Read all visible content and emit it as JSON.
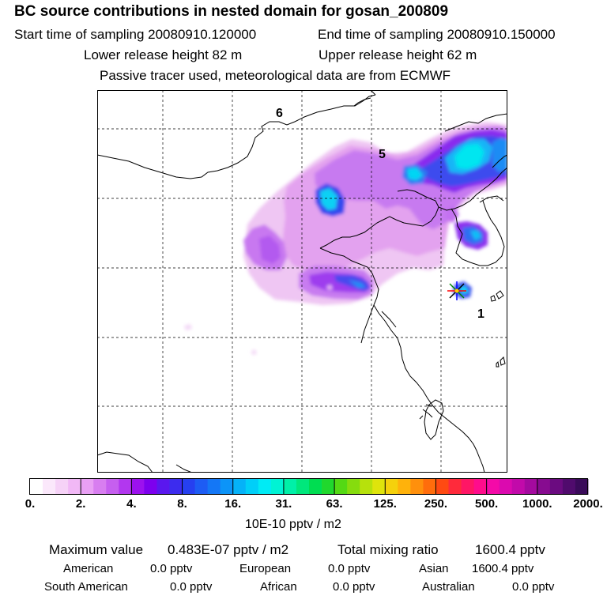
{
  "header": {
    "title": "BC  source contributions in nested domain for gosan_200809",
    "start_time": "Start time of sampling 20080910.120000",
    "end_time": "End time of sampling 20080910.150000",
    "lower_release": "Lower release height   82 m",
    "upper_release": "Upper release height   62 m",
    "note": "Passive tracer used, meteorological data are from ECMWF"
  },
  "map": {
    "region_labels": [
      "6",
      "5",
      "1"
    ],
    "receptor_marker": "star-icon"
  },
  "colorbar": {
    "ticks": [
      "0.",
      "2.",
      "4.",
      "8.",
      "16.",
      "31.",
      "63.",
      "125.",
      "250.",
      "500.",
      "1000.",
      "2000."
    ],
    "colors": [
      "#ffffff",
      "#fbe8fb",
      "#f6d2f7",
      "#f1b8f6",
      "#e9a0f4",
      "#d87ef0",
      "#c65fef",
      "#b237ef",
      "#9c11ee",
      "#7d00ee",
      "#5a17ee",
      "#3c2cee",
      "#2640f0",
      "#1d5cf4",
      "#1477f6",
      "#0c94f8",
      "#05b2f8",
      "#00cff8",
      "#00ebf5",
      "#00f3d4",
      "#00f0a8",
      "#00e77c",
      "#00dd51",
      "#20d82d",
      "#54d914",
      "#86dc0e",
      "#b7e10c",
      "#dfe40c",
      "#f5d10c",
      "#ffb20b",
      "#ff900c",
      "#ff6d0c",
      "#ff4a12",
      "#ff2a3b",
      "#ff1665",
      "#ff0c8c",
      "#f40aa8",
      "#db0aaf",
      "#c20aaa",
      "#a40a9f",
      "#870b90",
      "#6b0b80",
      "#500b6d",
      "#3a0a5a"
    ],
    "units": "10E-10 pptv / m2"
  },
  "summary": {
    "max_label": "Maximum value",
    "max_value": "0.483E-07 pptv / m2",
    "total_label": "Total mixing ratio",
    "total_value": "1600.4 pptv",
    "sources": [
      {
        "name": "American",
        "value": "0.0 pptv"
      },
      {
        "name": "European",
        "value": "0.0 pptv"
      },
      {
        "name": "Asian",
        "value": "1600.4 pptv"
      },
      {
        "name": "South American",
        "value": "0.0 pptv"
      },
      {
        "name": "African",
        "value": "0.0 pptv"
      },
      {
        "name": "Australian",
        "value": "0.0 pptv"
      }
    ]
  }
}
